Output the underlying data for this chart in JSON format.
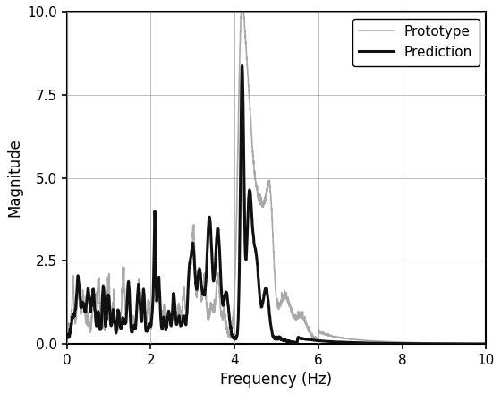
{
  "title": "",
  "xlabel": "Frequency (Hz)",
  "ylabel": "Magnitude",
  "xlim": [
    0,
    10
  ],
  "ylim": [
    0,
    10
  ],
  "xticks": [
    0,
    2,
    4,
    6,
    8,
    10
  ],
  "yticks": [
    0,
    2.5,
    5,
    7.5,
    10
  ],
  "prototype_color": "#aaaaaa",
  "prediction_color": "#111111",
  "prototype_lw": 1.2,
  "prediction_lw": 2.2,
  "legend_labels": [
    "Prototype",
    "Prediction"
  ],
  "background_color": "#ffffff"
}
